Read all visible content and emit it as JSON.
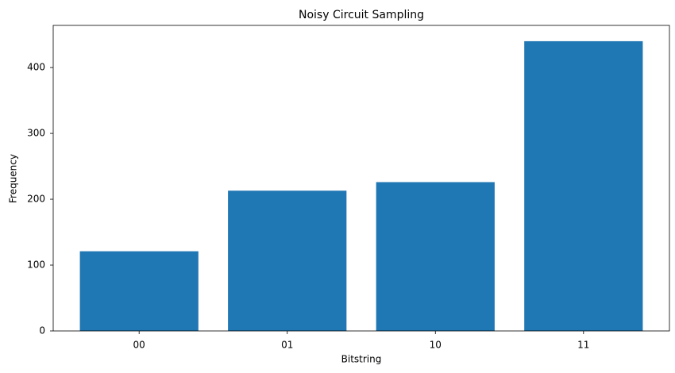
{
  "chart_data": {
    "type": "bar",
    "title": "Noisy Circuit Sampling",
    "x_label": "Bitstring",
    "y_label": "Frequency",
    "categories": [
      "00",
      "01",
      "10",
      "11"
    ],
    "values": [
      121,
      213,
      226,
      440
    ],
    "color": "#1f77b4",
    "ylim": [
      0,
      464
    ],
    "yticks": [
      0,
      100,
      200,
      300,
      400
    ],
    "grid": false
  }
}
